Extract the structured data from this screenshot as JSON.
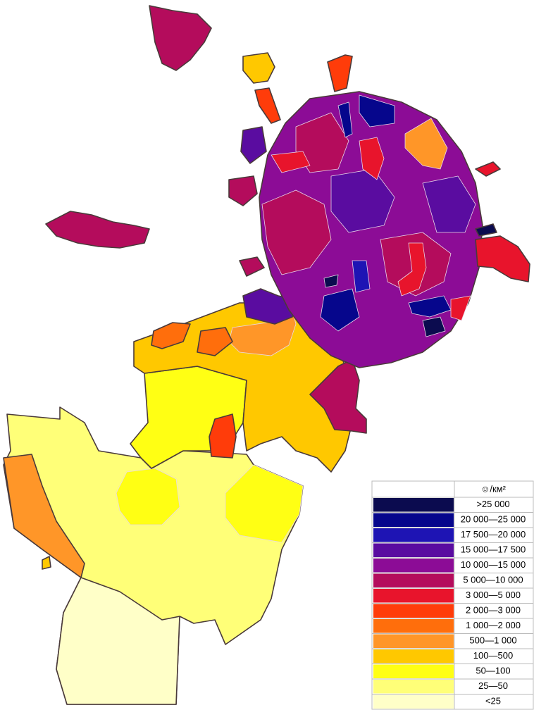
{
  "legend": {
    "title": "☺/км²",
    "items": [
      {
        "label": ">25 000",
        "color": "#0b0b4f"
      },
      {
        "label": "20 000—25 000",
        "color": "#06068c"
      },
      {
        "label": "17 500—20 000",
        "color": "#1e14b4"
      },
      {
        "label": "15 000—17 500",
        "color": "#5a0ca0"
      },
      {
        "label": "10 000—15 000",
        "color": "#8c0c96"
      },
      {
        "label": "5 000—10 000",
        "color": "#b40c5c"
      },
      {
        "label": "3 000—5 000",
        "color": "#e8142c"
      },
      {
        "label": "2 000—3 000",
        "color": "#ff3c0a"
      },
      {
        "label": "1 000—2 000",
        "color": "#ff6e0c"
      },
      {
        "label": "500—1 000",
        "color": "#ff9628"
      },
      {
        "label": "100—500",
        "color": "#ffc800"
      },
      {
        "label": "50—100",
        "color": "#ffff14"
      },
      {
        "label": "25—50",
        "color": "#ffff78"
      },
      {
        "label": "<25",
        "color": "#ffffc8"
      }
    ]
  }
}
